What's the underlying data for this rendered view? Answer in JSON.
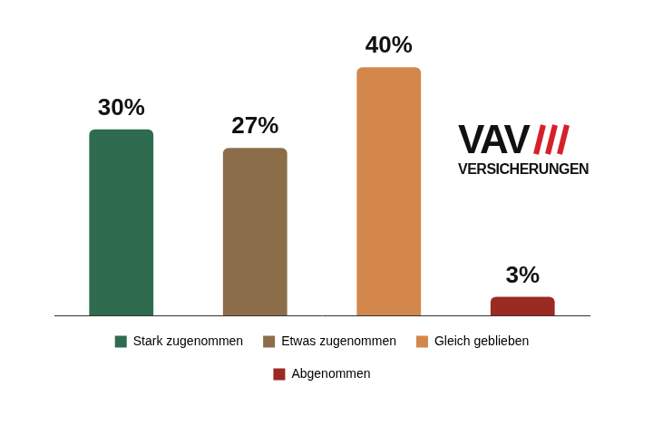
{
  "chart_data": {
    "type": "bar",
    "categories": [
      "Stark zugenommen",
      "Etwas zugenommen",
      "Gleich geblieben",
      "Abgenommen"
    ],
    "values": [
      30,
      27,
      40,
      3
    ],
    "value_labels": [
      "30%",
      "27%",
      "40%",
      "3%"
    ],
    "colors": [
      "#2e6b4f",
      "#8c6d4a",
      "#d4874a",
      "#9b2a22"
    ],
    "ylim": [
      0,
      45
    ],
    "grid": false,
    "legend": "bottom",
    "data_labels": true,
    "tick_labels": false,
    "annotations": [
      "VAV",
      "VERSICHERUNGEN"
    ]
  }
}
